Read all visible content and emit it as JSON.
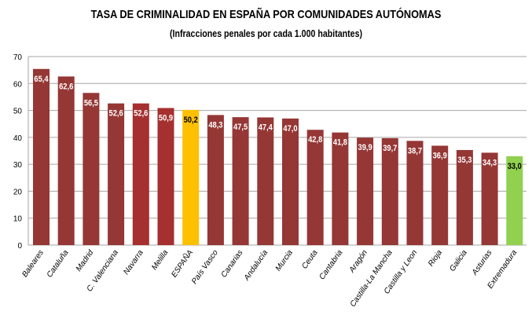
{
  "chart_data": {
    "type": "bar",
    "title": "TASA DE CRIMINALIDAD EN ESPAÑA POR COMUNIDADES AUTÓNOMAS",
    "subtitle": "(Infracciones penales por cada 1.000 habitantes)",
    "xlabel": "",
    "ylabel": "",
    "ylim": [
      0,
      70
    ],
    "yticks": [
      0,
      10,
      20,
      30,
      40,
      50,
      60,
      70
    ],
    "grid": true,
    "categories": [
      "Baleares",
      "Cataluña",
      "Madrid",
      "C. Valenciana",
      "Navarra",
      "Melilla",
      "ESPAÑA",
      "País Vasco",
      "Canarias",
      "Andalucía",
      "Murcia",
      "Ceuta",
      "Cantabria",
      "Aragón",
      "Castilla-La Mancha",
      "Castilla y Leon",
      "Rioja",
      "Galicia",
      "Asturias",
      "Extremadura"
    ],
    "values": [
      65.4,
      62.6,
      56.5,
      52.6,
      52.6,
      50.9,
      50.2,
      48.3,
      47.5,
      47.4,
      47.0,
      42.8,
      41.8,
      39.9,
      39.7,
      38.7,
      36.9,
      35.3,
      34.3,
      33.0
    ],
    "data_labels": [
      "65,4",
      "62,6",
      "56,5",
      "52,6",
      "52,6",
      "50,9",
      "50,2",
      "48,3",
      "47,5",
      "47,4",
      "47,0",
      "42,8",
      "41,8",
      "39,9",
      "39,7",
      "38,7",
      "36,9",
      "35,3",
      "34,3",
      "33,0"
    ],
    "colors": [
      "#953735",
      "#953735",
      "#953735",
      "#953735",
      "#A5302F",
      "#A5302F",
      "#FFC000",
      "#953735",
      "#953735",
      "#953735",
      "#953735",
      "#953735",
      "#953735",
      "#953735",
      "#953735",
      "#953735",
      "#953735",
      "#953735",
      "#953735",
      "#92D050"
    ]
  }
}
